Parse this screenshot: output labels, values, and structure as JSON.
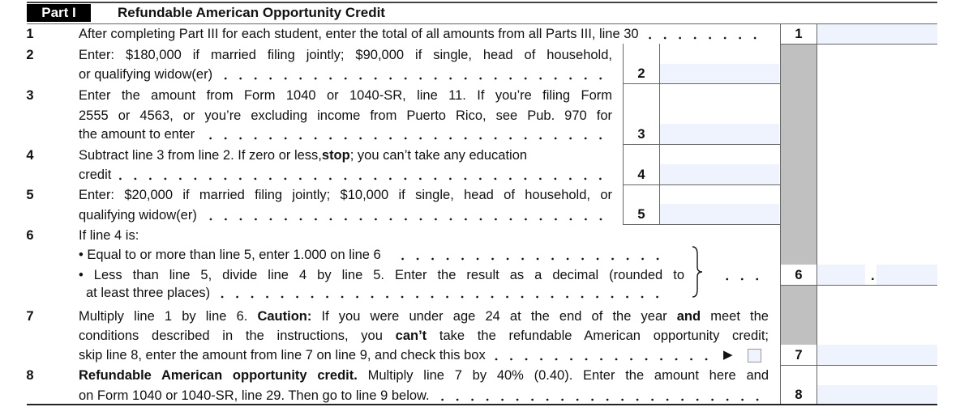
{
  "header": {
    "part": "Part I",
    "title": "Refundable American Opportunity Credit"
  },
  "lines": [
    {
      "num": "1",
      "text": [
        "After completing Part III for each student, enter the total of all amounts from all Parts III, line 30"
      ],
      "box": "1"
    },
    {
      "num": "2",
      "text": [
        "Enter: $180,000 if married filing jointly; $90,000 if single, head of household,",
        "or qualifying widow(er)"
      ],
      "box": "2"
    },
    {
      "num": "3",
      "text": [
        "Enter the amount from Form 1040 or 1040-SR, line 11. If you’re filing Form",
        "2555 or 4563, or you’re excluding income from Puerto Rico, see Pub. 970 for",
        "the amount to enter"
      ],
      "box": "3"
    },
    {
      "num": "4",
      "text_a": "Subtract line 3 from line 2. If zero or less, ",
      "text_bold": "stop",
      "text_b": "; you can’t take any education",
      "text2": "credit",
      "box": "4"
    },
    {
      "num": "5",
      "text": [
        "Enter: $20,000 if married filing jointly; $10,000 if single, head of household,  or",
        "qualifying widow(er)"
      ],
      "box": "5"
    },
    {
      "num": "6",
      "text": [
        "If line 4 is:",
        "• Equal to or more than line 5, enter 1.000 on line 6",
        "• Less than line 5, divide line 4 by line 5. Enter the result as a decimal (rounded to",
        "at least three places)"
      ],
      "box": "6",
      "decimal_point": "."
    },
    {
      "num": "7",
      "l1a": "Multiply line 1 by line 6. ",
      "l1b": "Caution:",
      "l1c": " If you were under age 24 at the end of the year ",
      "l1d": "and",
      "l1e": " meet the",
      "l2a": "conditions described in the instructions, you ",
      "l2b": "can’t",
      "l2c": " take the refundable American opportunity credit;",
      "l3": "skip line 8, enter the amount from line 7 on line 9, and check this box",
      "arrow": "▶",
      "checkbox_checked": false,
      "box": "7"
    },
    {
      "num": "8",
      "l1a": "Refundable American opportunity credit.",
      "l1b": " Multiply line 7 by 40% (0.40). Enter the amount here and",
      "l2": "on Form 1040 or 1040-SR, line 29. Then go to line 9 below.",
      "box": "8"
    }
  ],
  "colors": {
    "field": "#eef3fd",
    "shaded": "#c0c0c0",
    "header_bg": "#000000"
  }
}
